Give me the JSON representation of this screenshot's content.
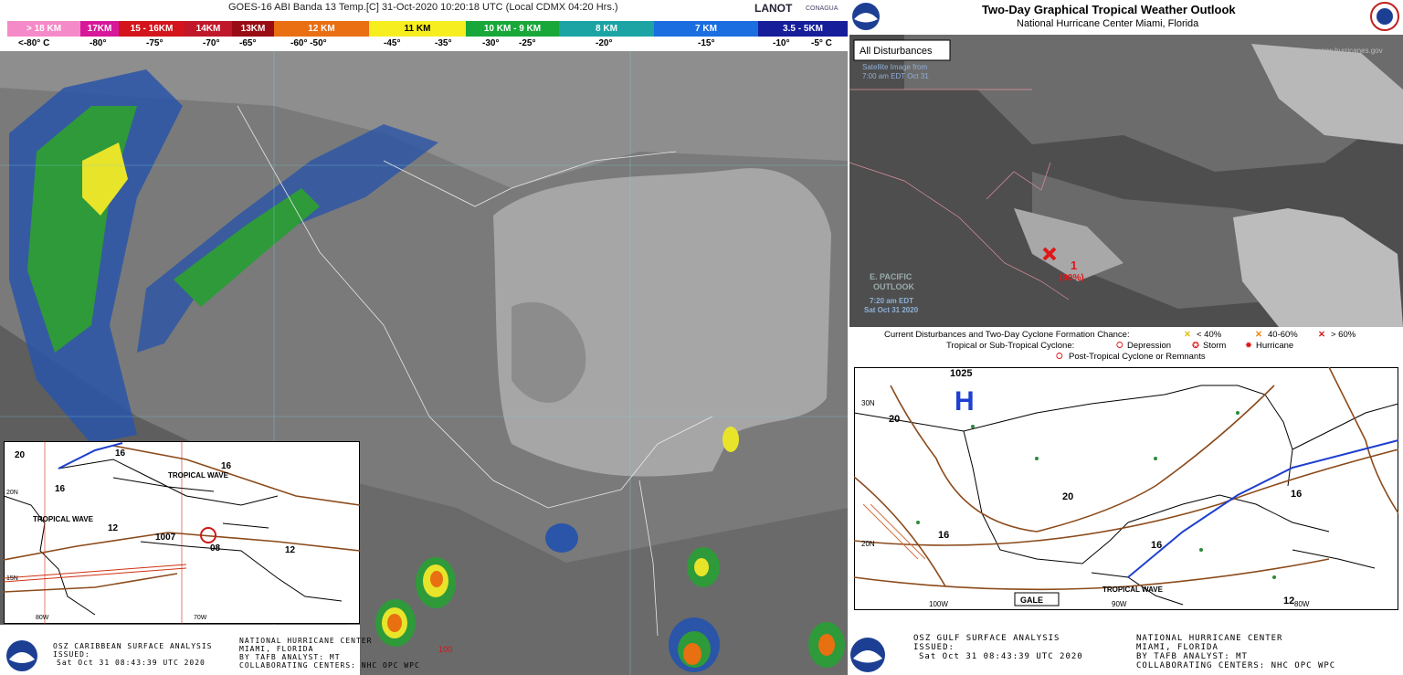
{
  "goes": {
    "title": "GOES-16 ABI Banda 13 Temp.[C] 31-Oct-2020 10:20:18 UTC (Local CDMX  04:20 Hrs.)",
    "logos": [
      "LANOT",
      "CONAGUA"
    ],
    "heights": [
      "> 18 KM",
      "17KM",
      "15 - 16KM",
      "14KM",
      "13KM",
      "12 KM",
      "11 KM",
      "10 KM - 9 KM",
      "8 KM",
      "7 KM",
      "3.5 - 5KM"
    ],
    "temps": [
      "<-80° C",
      "-80°",
      "-75°",
      "-70°",
      "-65°",
      "-60° -50°",
      "-45°",
      "-35°",
      "-30°",
      "-25°",
      "-20°",
      "-15°",
      "-10°",
      "-5° C"
    ],
    "marker": "100"
  },
  "caribbean": {
    "labels": [
      "20",
      "16",
      "16",
      "TROPICAL WAVE",
      "16",
      "TROPICAL WAVE",
      "12",
      "1007",
      "08",
      "12",
      "20N",
      "15N",
      "80W",
      "70W"
    ],
    "footer": {
      "product": "OSZ CARIBBEAN SURFACE ANALYSIS",
      "issued": "ISSUED:",
      "time": "Sat Oct 31 08:43:39 UTC 2020",
      "center": "NATIONAL HURRICANE CENTER",
      "location": "MIAMI, FLORIDA",
      "analyst": "BY TAFB ANALYST: MT",
      "collab": "COLLABORATING CENTERS: NHC OPC WPC"
    }
  },
  "outlook": {
    "title": "Two-Day Graphical Tropical Weather Outlook",
    "subtitle": "National Hurricane Center  Miami, Florida",
    "tab": "All Disturbances",
    "sat_caption": [
      "Satellite Image from",
      "7:00 am EDT Oct 31"
    ],
    "epac": [
      "E. PACIFIC",
      "OUTLOOK"
    ],
    "epac_time": [
      "7:20 am EDT",
      "Sat Oct 31 2020"
    ],
    "website": "www.hurricanes.gov",
    "system": {
      "number": "1",
      "chance": "(90%)"
    },
    "legend": {
      "formation": "Current Disturbances and Two-Day Cyclone Formation Chance:",
      "low": "< 40%",
      "mid": "40-60%",
      "high": "> 60%",
      "cyclone": "Tropical or Sub-Tropical Cyclone:",
      "depression": "Depression",
      "storm": "Storm",
      "hurricane": "Hurricane",
      "post": "Post-Tropical Cyclone or Remnants"
    }
  },
  "gulf": {
    "labels": [
      "1025",
      "H",
      "30N",
      "20",
      "20",
      "16",
      "20N",
      "16",
      "16",
      "12",
      "100W",
      "90W",
      "80W",
      "TROPICAL WAVE",
      "GALE"
    ],
    "footer": {
      "product": "OSZ GULF SURFACE ANALYSIS",
      "issued": "ISSUED:",
      "time": "Sat Oct 31 08:43:39 UTC 2020",
      "center": "NATIONAL HURRICANE CENTER",
      "location": "MIAMI, FLORIDA",
      "analyst": "BY TAFB ANALYST: MT",
      "collab": "COLLABORATING CENTERS: NHC OPC WPC"
    }
  }
}
